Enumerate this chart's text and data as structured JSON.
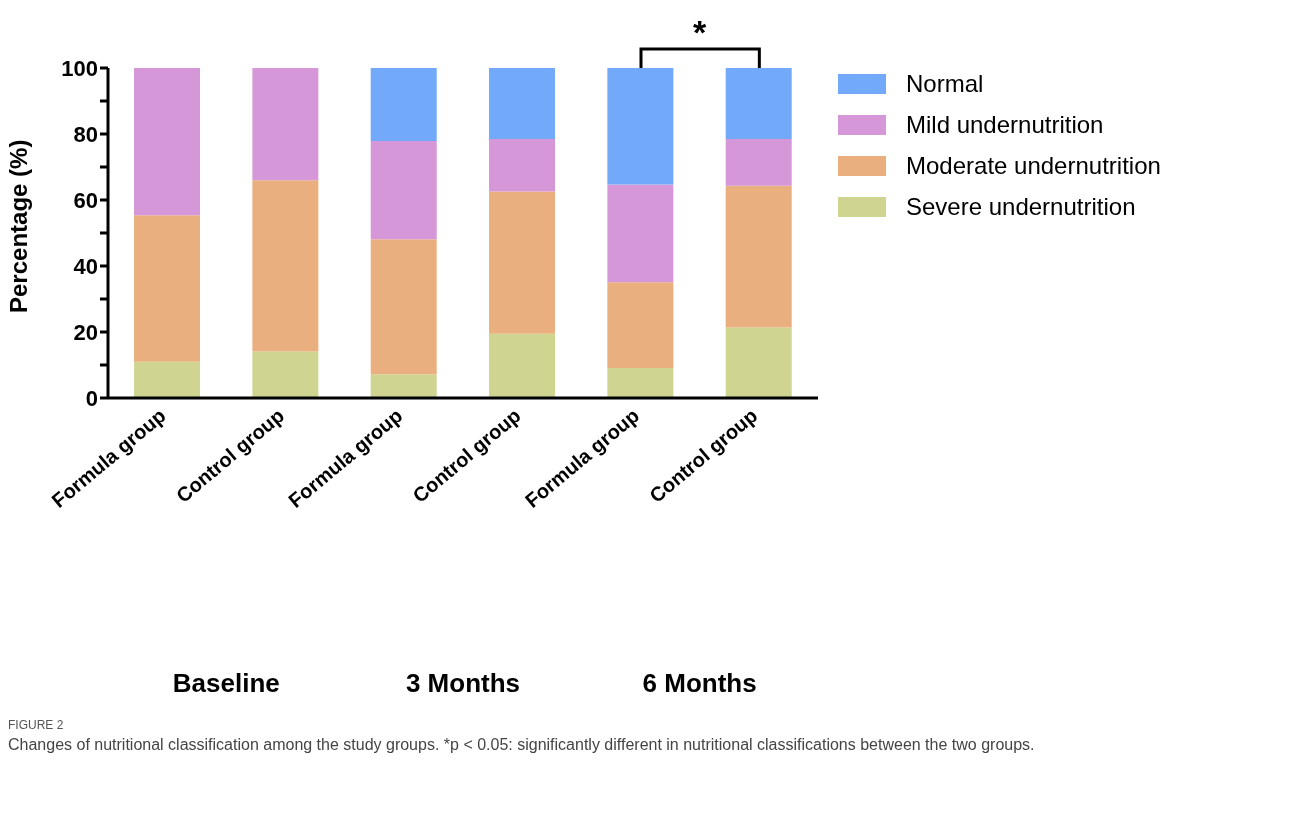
{
  "chart_data": {
    "type": "bar",
    "stacked": true,
    "categories": [
      "Formula group",
      "Control group",
      "Formula group",
      "Control group",
      "Formula group",
      "Control group"
    ],
    "series": [
      {
        "name": "Severe undernutrition",
        "color": "#cfd591",
        "values": [
          11,
          14.1,
          7.2,
          19.5,
          9.1,
          21.4
        ]
      },
      {
        "name": "Moderate undernutrition",
        "color": "#eaaf7e",
        "values": [
          44.4,
          51.9,
          40.9,
          43.1,
          26,
          42.9
        ]
      },
      {
        "name": "Mild undernutrition",
        "color": "#d597d8",
        "values": [
          44.6,
          34,
          29.8,
          15.9,
          29.6,
          14.2
        ]
      },
      {
        "name": "Normal",
        "color": "#72a9f9",
        "values": [
          0,
          0,
          22.1,
          21.5,
          35.3,
          21.5
        ]
      }
    ],
    "ylabel": "Percentage (%)",
    "ylim": [
      0,
      100
    ],
    "yticks": [
      0,
      {
        "value": 10,
        "label": null
      },
      20,
      {
        "value": 30,
        "label": null
      },
      40,
      {
        "value": 50,
        "label": null
      },
      60,
      {
        "value": 70,
        "label": null
      },
      80,
      {
        "value": 90,
        "label": null
      },
      100
    ],
    "grid": false,
    "legend": "top right",
    "annotations": [
      "Baseline",
      "3 Months",
      "6 Months",
      "*",
      "FIGURE 2",
      "Changes of nutritional classification among the study groups. *p < 0.05: significantly different in nutritional classifications between the two groups."
    ]
  }
}
